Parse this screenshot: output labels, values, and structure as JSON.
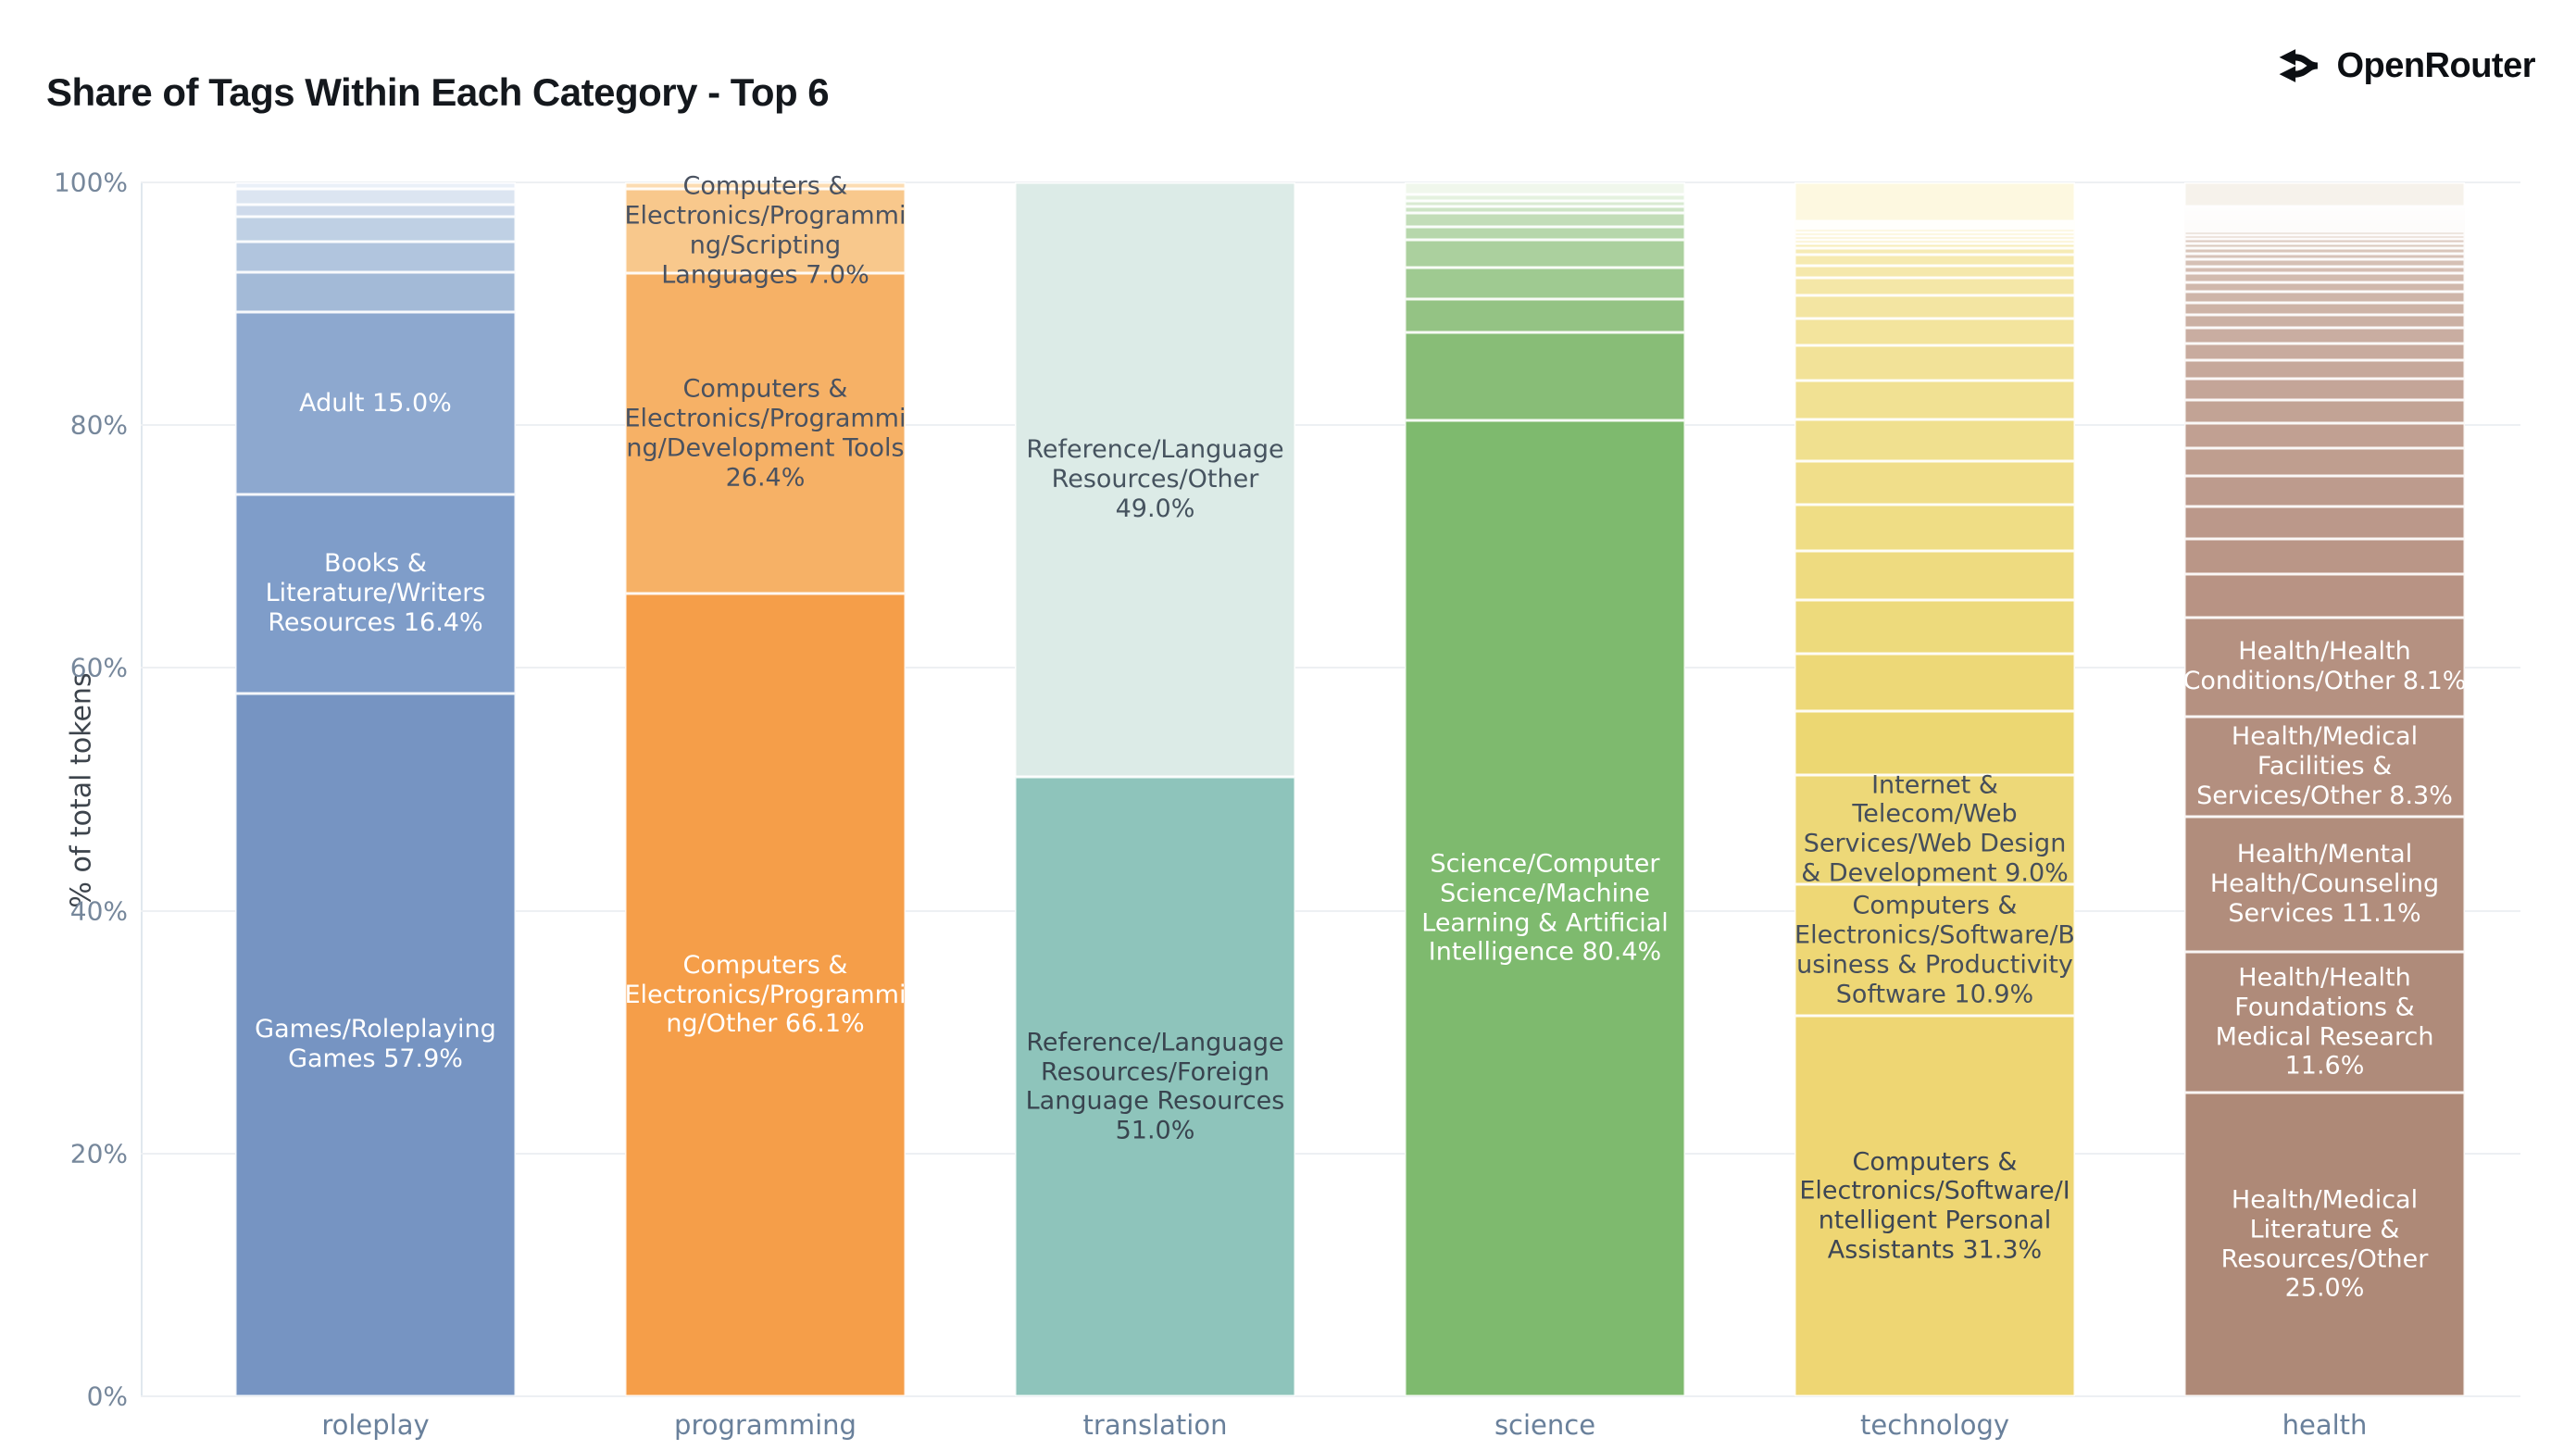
{
  "brand": {
    "label": "OpenRouter",
    "icon": "openrouter-fork-icon"
  },
  "chart_data": {
    "type": "bar",
    "stacked": true,
    "normalized": "percent",
    "title": "Share of Tags Within Each Category - Top 6",
    "xlabel": "",
    "ylabel": "% of total tokens",
    "ylim": [
      0,
      100
    ],
    "yticks": [
      "0%",
      "20%",
      "40%",
      "60%",
      "80%",
      "100%"
    ],
    "grid": true,
    "legend": false,
    "categories": [
      "roleplay",
      "programming",
      "translation",
      "science",
      "technology",
      "health"
    ],
    "bars": [
      {
        "category": "roleplay",
        "tint_top": "#eaf0f8",
        "tint_bottom": "#a3bad7",
        "segments": [
          {
            "label": null,
            "value": 0.5
          },
          {
            "label": null,
            "value": 1.3
          },
          {
            "label": null,
            "value": 1.0
          },
          {
            "label": null,
            "value": 2.1
          },
          {
            "label": null,
            "value": 2.5
          },
          {
            "label": null,
            "value": 3.3
          },
          {
            "label": "Adult 15.0%",
            "value": 15.0,
            "color": "#8da8cf",
            "text": "#ffffff"
          },
          {
            "label": "Books & Literature/Writers Resources 16.4%",
            "value": 16.4,
            "color": "#7f9dc9",
            "text": "#ffffff"
          },
          {
            "label": "Games/Roleplaying Games 57.9%",
            "value": 57.9,
            "color": "#7694c2",
            "text": "#ffffff"
          }
        ]
      },
      {
        "category": "programming",
        "tint_top": "#fcdcb2",
        "tint_bottom": "#fcdcb2",
        "segments": [
          {
            "label": null,
            "value": 0.5
          },
          {
            "label": "Computers & Electronics/Programming/Scripting Languages 7.0%",
            "value": 7.0,
            "color": "#f8c88c",
            "text": "#4a5260"
          },
          {
            "label": "Computers & Electronics/Programming/Development Tools 26.4%",
            "value": 26.4,
            "color": "#f6b166",
            "text": "#4a5260"
          },
          {
            "label": "Computers & Electronics/Programming/Other 66.1%",
            "value": 66.1,
            "color": "#f59e49",
            "text": "#ffffff"
          }
        ]
      },
      {
        "category": "translation",
        "tint_top": "#e8f2f0",
        "tint_bottom": "#e8f2f0",
        "segments": [
          {
            "label": "Reference/Language Resources/Other 49.0%",
            "value": 49.0,
            "color": "#dcebe7",
            "text": "#46535f"
          },
          {
            "label": "Reference/Language Resources/Foreign Language Resources 51.0%",
            "value": 51.0,
            "color": "#8ec4bb",
            "text": "#39444f"
          }
        ]
      },
      {
        "category": "science",
        "tint_top": "#f0f7ec",
        "tint_bottom": "#88bd77",
        "segments": [
          {
            "label": null,
            "value": 1.0
          },
          {
            "label": null,
            "value": 0.5
          },
          {
            "label": null,
            "value": 0.5
          },
          {
            "label": null,
            "value": 0.5
          },
          {
            "label": null,
            "value": 1.2
          },
          {
            "label": null,
            "value": 1.05
          },
          {
            "label": null,
            "value": 2.3
          },
          {
            "label": null,
            "value": 2.6
          },
          {
            "label": null,
            "value": 2.7
          },
          {
            "label": null,
            "value": 7.25
          },
          {
            "label": "Science/Computer Science/Machine Learning & Artificial Intelligence 80.4%",
            "value": 80.4,
            "color": "#7eba6e",
            "text": "#ffffff"
          }
        ]
      },
      {
        "category": "technology",
        "tint_top": "#fdf8e0",
        "tint_bottom": "#ecd772",
        "segments": [
          {
            "label": null,
            "value": 3.2
          },
          {
            "label": null,
            "value": 0.2
          },
          {
            "label": null,
            "value": 0.2
          },
          {
            "label": null,
            "value": 0.25
          },
          {
            "label": null,
            "value": 0.25
          },
          {
            "label": null,
            "value": 0.3
          },
          {
            "label": null,
            "value": 0.3
          },
          {
            "label": null,
            "value": 0.35
          },
          {
            "label": null,
            "value": 0.4
          },
          {
            "label": null,
            "value": 0.5
          },
          {
            "label": null,
            "value": 0.9
          },
          {
            "label": null,
            "value": 1.0
          },
          {
            "label": null,
            "value": 1.5
          },
          {
            "label": null,
            "value": 1.9
          },
          {
            "label": null,
            "value": 2.2
          },
          {
            "label": null,
            "value": 2.9
          },
          {
            "label": null,
            "value": 3.2
          },
          {
            "label": null,
            "value": 3.4
          },
          {
            "label": null,
            "value": 3.6
          },
          {
            "label": null,
            "value": 3.8
          },
          {
            "label": null,
            "value": 4.1
          },
          {
            "label": null,
            "value": 4.4
          },
          {
            "label": null,
            "value": 4.7
          },
          {
            "label": null,
            "value": 5.25
          },
          {
            "label": "Internet & Telecom/Web Services/Web Design & Development 9.0%",
            "value": 9.0,
            "color": "#edd878",
            "text": "#454e5b"
          },
          {
            "label": "Computers & Electronics/Software/Business & Productivity Software 10.9%",
            "value": 10.9,
            "color": "#eed775",
            "text": "#454e5b"
          },
          {
            "label": "Computers & Electronics/Software/Intelligent Personal Assistants 31.3%",
            "value": 31.3,
            "color": "#eed673",
            "text": "#3d4654"
          }
        ]
      },
      {
        "category": "health",
        "tint_top": "#f6f2eb",
        "tint_bottom": "#b89384",
        "segments": [
          {
            "label": null,
            "value": 2.0
          },
          {
            "label": null,
            "value": 0.12
          },
          {
            "label": null,
            "value": 0.12
          },
          {
            "label": null,
            "value": 0.12
          },
          {
            "label": null,
            "value": 0.15
          },
          {
            "label": null,
            "value": 0.15
          },
          {
            "label": null,
            "value": 0.15
          },
          {
            "label": null,
            "value": 0.18
          },
          {
            "label": null,
            "value": 0.18
          },
          {
            "label": null,
            "value": 0.2
          },
          {
            "label": null,
            "value": 0.2
          },
          {
            "label": null,
            "value": 0.25
          },
          {
            "label": null,
            "value": 0.25
          },
          {
            "label": null,
            "value": 0.3
          },
          {
            "label": null,
            "value": 0.3
          },
          {
            "label": null,
            "value": 0.35
          },
          {
            "label": null,
            "value": 0.4
          },
          {
            "label": null,
            "value": 0.45
          },
          {
            "label": null,
            "value": 0.5
          },
          {
            "label": null,
            "value": 0.55
          },
          {
            "label": null,
            "value": 0.6
          },
          {
            "label": null,
            "value": 0.7
          },
          {
            "label": null,
            "value": 0.8
          },
          {
            "label": null,
            "value": 0.9
          },
          {
            "label": null,
            "value": 1.0
          },
          {
            "label": null,
            "value": 1.1
          },
          {
            "label": null,
            "value": 1.25
          },
          {
            "label": null,
            "value": 1.4
          },
          {
            "label": null,
            "value": 1.55
          },
          {
            "label": null,
            "value": 1.7
          },
          {
            "label": null,
            "value": 1.9
          },
          {
            "label": null,
            "value": 2.1
          },
          {
            "label": null,
            "value": 2.3
          },
          {
            "label": null,
            "value": 2.5
          },
          {
            "label": null,
            "value": 2.7
          },
          {
            "label": null,
            "value": 2.9
          },
          {
            "label": null,
            "value": 3.58
          },
          {
            "label": "Health/Health Conditions/Other 8.1%",
            "value": 8.1,
            "color": "#b59181",
            "text": "#ffffff"
          },
          {
            "label": "Health/Medical Facilities & Services/Other 8.3%",
            "value": 8.3,
            "color": "#b38f7f",
            "text": "#ffffff"
          },
          {
            "label": "Health/Mental Health/Counseling Services 11.1%",
            "value": 11.1,
            "color": "#b18d7c",
            "text": "#ffffff"
          },
          {
            "label": "Health/Health Foundations & Medical Research 11.6%",
            "value": 11.6,
            "color": "#af8b7a",
            "text": "#ffffff"
          },
          {
            "label": "Health/Medical Literature & Resources/Other 25.0%",
            "value": 25.0,
            "color": "#ae8977",
            "text": "#ffffff"
          }
        ]
      }
    ]
  },
  "colors": {
    "background": "#ffffff",
    "gridline": "#edf0f3",
    "axis_text": "#76879b",
    "category_text": "#69809b",
    "title_text": "#14181d",
    "series": {
      "roleplay": "#7694c2",
      "programming": "#f59e49",
      "translation": "#8ec4bb",
      "science": "#7eba6e",
      "technology": "#eed673",
      "health": "#ae8977"
    }
  }
}
